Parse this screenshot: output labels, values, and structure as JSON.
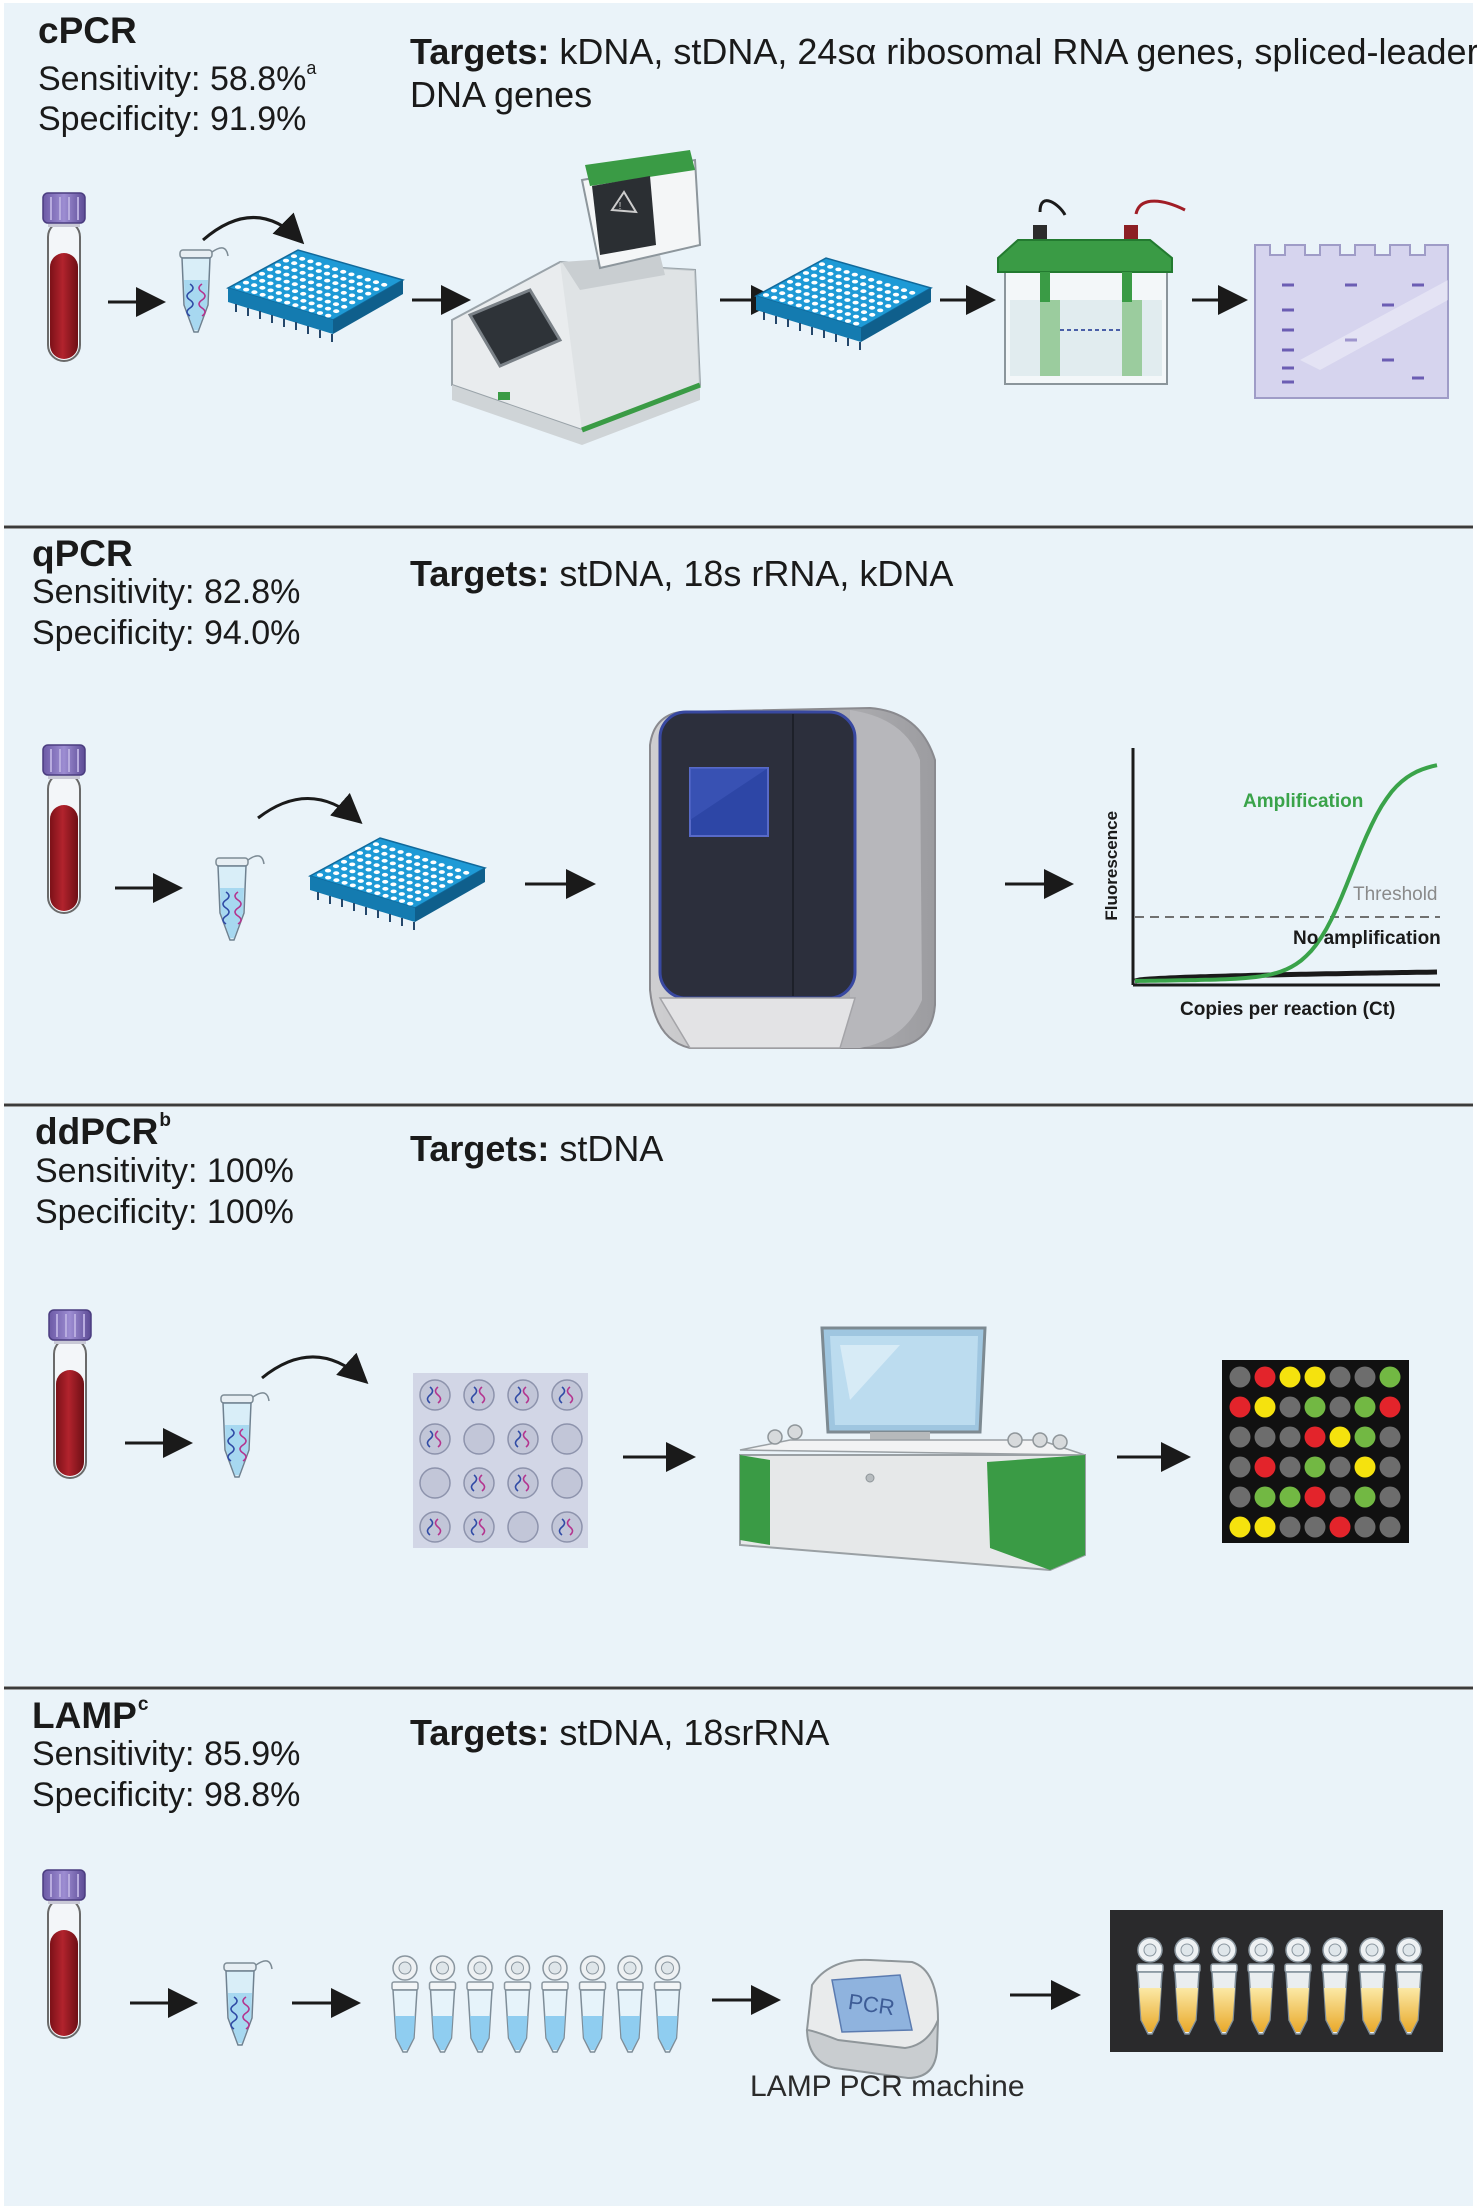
{
  "colors": {
    "panel_bg": "#eaf3f9",
    "divider": "#3b3b3b",
    "blood": "#a01d26",
    "tube_cap": "#8a78c0",
    "plate_blue": "#1e9ad6",
    "instrument_green": "#3a9b45",
    "amplification_curve": "#3aa34a",
    "droplet_red": "#e3242b",
    "droplet_yellow": "#f5e20e",
    "droplet_green": "#72b843",
    "droplet_gray": "#6d6d6d",
    "lamp_yellow": "#f4c64a"
  },
  "sections": [
    {
      "title": "cPCR",
      "title_sup": "",
      "sensitivity": "Sensitivity: 58.8%",
      "sensitivity_sup": "a",
      "specificity": "Specificity: 91.9%",
      "targets_label": "Targets:",
      "targets_text": "kDNA, stDNA, 24sα ribosomal RNA genes, spliced-leader DNA genes",
      "icons": [
        "blood-tube-icon",
        "eppendorf-tube-icon",
        "96-well-plate-icon",
        "thermal-cycler-icon",
        "96-well-plate-icon",
        "gel-electrophoresis-tank-icon",
        "agarose-gel-icon"
      ]
    },
    {
      "title": "qPCR",
      "title_sup": "",
      "sensitivity": "Sensitivity: 82.8%",
      "sensitivity_sup": "",
      "specificity": "Specificity: 94.0%",
      "targets_label": "Targets:",
      "targets_text": "stDNA, 18s rRNA, kDNA",
      "icons": [
        "blood-tube-icon",
        "eppendorf-tube-icon",
        "96-well-plate-icon",
        "qpcr-instrument-icon",
        "amplification-plot-icon"
      ]
    },
    {
      "title": "ddPCR",
      "title_sup": "b",
      "sensitivity": "Sensitivity: 100%",
      "sensitivity_sup": "",
      "specificity": "Specificity: 100%",
      "targets_label": "Targets:",
      "targets_text": "stDNA",
      "icons": [
        "blood-tube-icon",
        "eppendorf-tube-icon",
        "droplet-partition-icon",
        "droplet-reader-icon",
        "droplet-result-grid-icon"
      ]
    },
    {
      "title": "LAMP",
      "title_sup": "c",
      "sensitivity": "Sensitivity: 85.9%",
      "sensitivity_sup": "",
      "specificity": "Specificity: 98.8%",
      "targets_label": "Targets:",
      "targets_text": "stDNA, 18srRNA",
      "icons": [
        "blood-tube-icon",
        "eppendorf-tube-icon",
        "pcr-strip-tubes-icon",
        "lamp-pcr-machine-icon",
        "colorimetric-result-tubes-icon"
      ],
      "machine_caption": "LAMP PCR machine",
      "machine_screen_text": "PCR"
    }
  ],
  "qpcr_chart": {
    "type": "line",
    "xlabel": "Copies per reaction (Ct)",
    "ylabel": "Fluorescence",
    "series": [
      {
        "name": "Amplification",
        "shape": "sigmoid"
      },
      {
        "name": "No amplification",
        "shape": "flat"
      }
    ],
    "threshold_label": "Threshold",
    "grid": false
  },
  "ddpcr_result_grid": [
    [
      "gray",
      "red",
      "yellow",
      "yellow",
      "gray",
      "gray",
      "green"
    ],
    [
      "red",
      "yellow",
      "gray",
      "green",
      "gray",
      "green",
      "red"
    ],
    [
      "gray",
      "gray",
      "gray",
      "red",
      "yellow",
      "green",
      "gray"
    ],
    [
      "gray",
      "red",
      "gray",
      "green",
      "gray",
      "yellow",
      "gray"
    ],
    [
      "gray",
      "green",
      "green",
      "red",
      "gray",
      "green",
      "gray"
    ],
    [
      "yellow",
      "yellow",
      "gray",
      "gray",
      "red",
      "gray",
      "gray"
    ]
  ]
}
